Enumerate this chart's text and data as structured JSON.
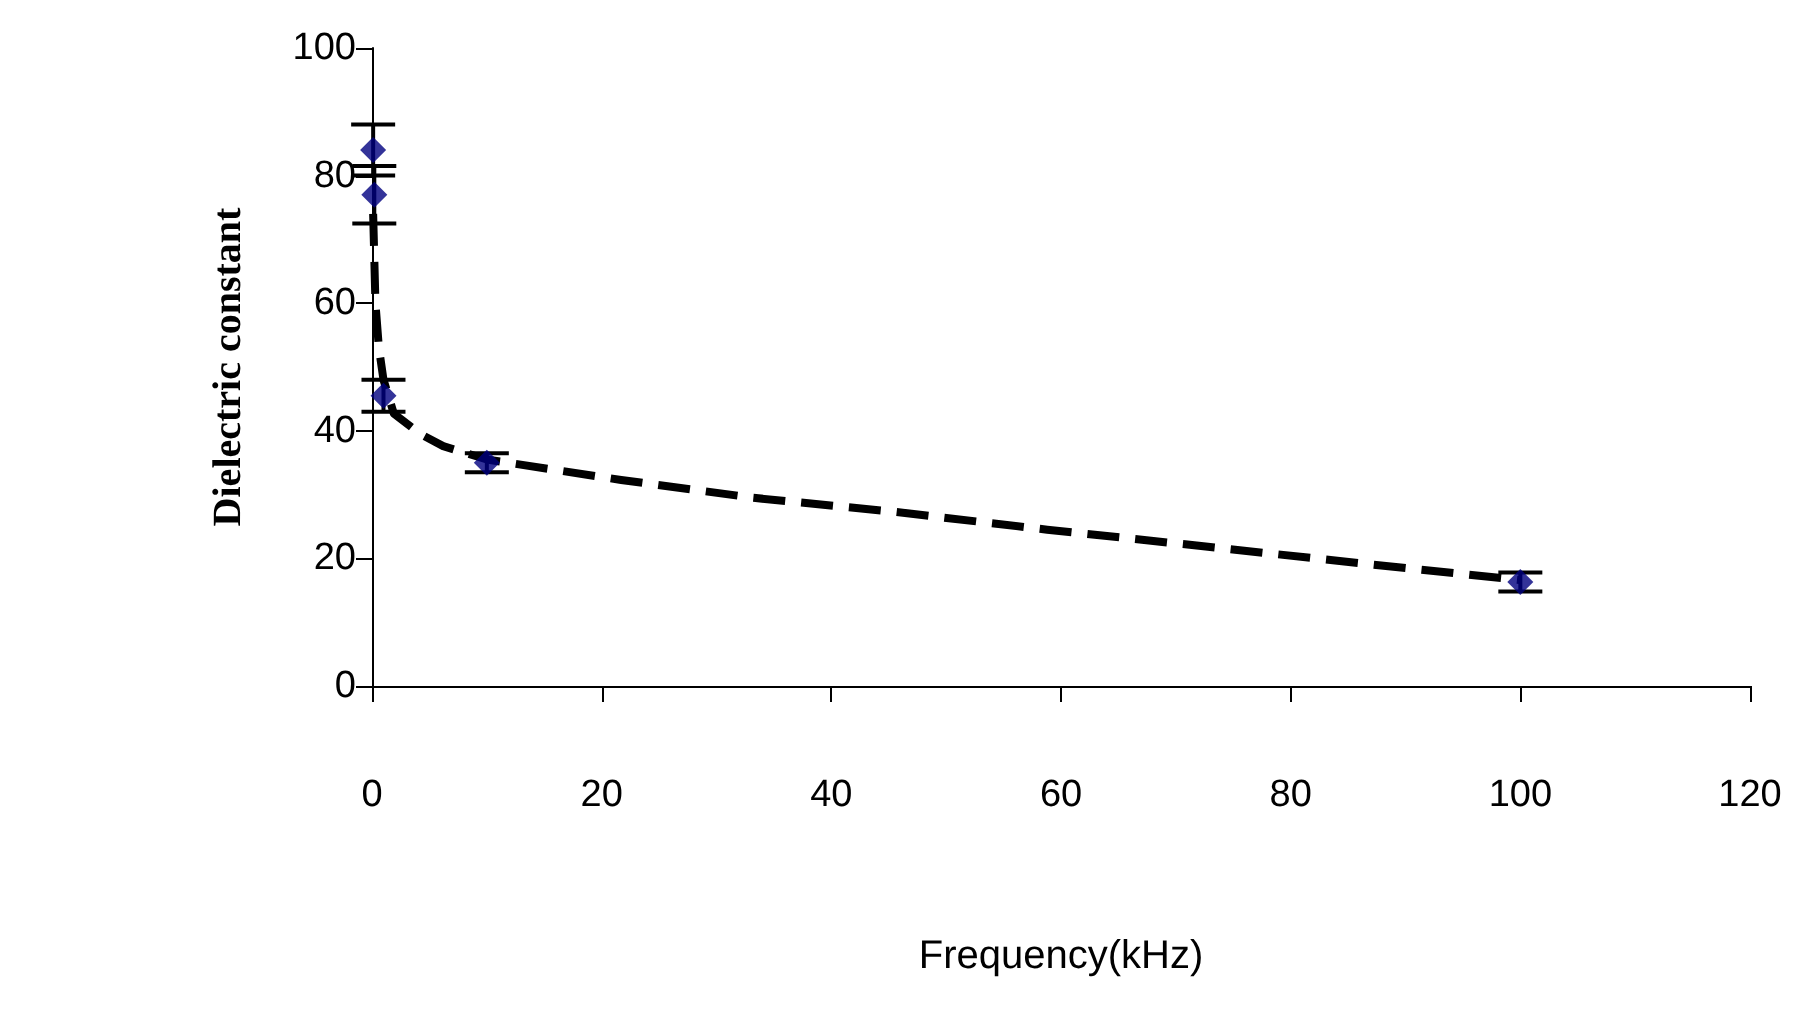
{
  "chart_data": {
    "type": "scatter",
    "xlabel": "Frequency(kHz)",
    "ylabel": "Dielectric constant",
    "xlim": [
      0,
      120
    ],
    "xticks": [
      0,
      20,
      40,
      60,
      80,
      100,
      120
    ],
    "ylim": [
      0,
      100
    ],
    "yticks": [
      0,
      20,
      40,
      60,
      80,
      100
    ],
    "grid": false,
    "series": [
      {
        "type": "line",
        "color": "#000000",
        "line_style": "dashed",
        "marker": "none",
        "x": [
          0.1,
          0.3,
          0.6,
          1,
          1.9,
          4.2,
          6.2,
          10,
          21.7,
          33.2,
          45.5,
          58.8,
          72.4,
          86.8,
          100
        ],
        "values": [
          74,
          60,
          53,
          48,
          42.7,
          39.5,
          37.6,
          35.5,
          32.3,
          29.5,
          27.3,
          24.5,
          21.9,
          19.1,
          16.6
        ]
      },
      {
        "color": "#000080",
        "marker": "diamond",
        "x": [
          0.1,
          0.2,
          1,
          10,
          100
        ],
        "values": [
          84,
          77,
          45.5,
          35,
          16.3
        ],
        "errors": [
          4,
          4.5,
          2.5,
          1.5,
          1.5
        ]
      }
    ]
  }
}
